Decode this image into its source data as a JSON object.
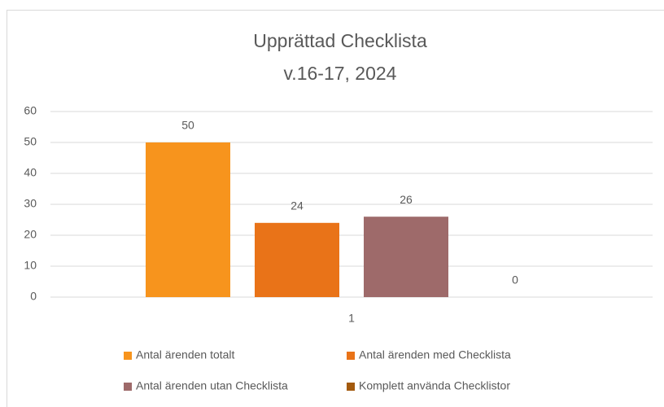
{
  "chart_data": {
    "type": "bar",
    "title": "Upprättad Checklista",
    "subtitle": "v.16-17, 2024",
    "categories": [
      "1"
    ],
    "series": [
      {
        "name": "Antal ärenden totalt",
        "color": "#F7941D",
        "values": [
          50
        ]
      },
      {
        "name": "Antal ärenden med Checklista",
        "color": "#E97318",
        "values": [
          24
        ]
      },
      {
        "name": "Antal ärenden utan Checklista",
        "color": "#9E6A6A",
        "values": [
          26
        ]
      },
      {
        "name": "Komplett använda Checklistor",
        "color": "#A35A0E",
        "values": [
          0
        ]
      }
    ],
    "ylim": [
      0,
      60
    ],
    "yticks": [
      0,
      10,
      20,
      30,
      40,
      50,
      60
    ],
    "grid": true,
    "legend": "bottom",
    "data_labels": true
  }
}
